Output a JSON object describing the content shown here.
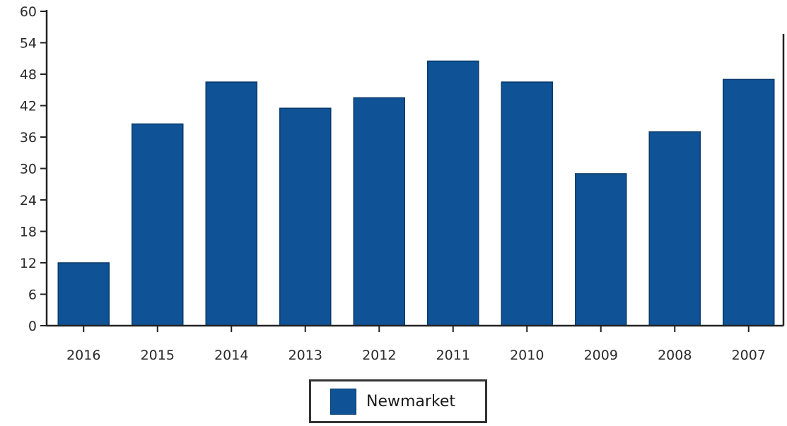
{
  "chart_data": {
    "type": "bar",
    "categories": [
      "2016",
      "2015",
      "2014",
      "2013",
      "2012",
      "2011",
      "2010",
      "2009",
      "2008",
      "2007"
    ],
    "series": [
      {
        "name": "Newmarket",
        "values": [
          12,
          38.5,
          46.5,
          41.5,
          43.5,
          50.5,
          46.5,
          29,
          37,
          47
        ]
      }
    ],
    "yticks": [
      0,
      6,
      12,
      18,
      24,
      30,
      36,
      42,
      48,
      54,
      60
    ],
    "ylim": [
      0,
      60
    ],
    "title": "",
    "xlabel": "",
    "ylabel": "",
    "grid": false,
    "legend_position": "bottom-center",
    "colors": {
      "bar": "#0f5296",
      "bar_edge": "#0a3a6a",
      "axis": "#222222"
    }
  }
}
